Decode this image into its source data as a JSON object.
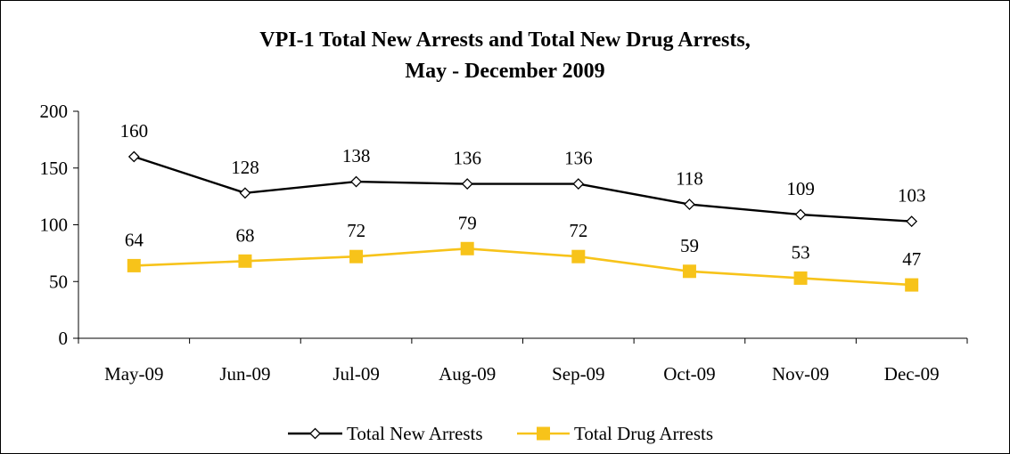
{
  "chart_data": {
    "type": "line",
    "title_line1": "VPI-1 Total New Arrests and Total New Drug Arrests,",
    "title_line2": "May - December 2009",
    "categories": [
      "May-09",
      "Jun-09",
      "Jul-09",
      "Aug-09",
      "Sep-09",
      "Oct-09",
      "Nov-09",
      "Dec-09"
    ],
    "ylim": [
      0,
      200
    ],
    "yticks": [
      0,
      50,
      100,
      150,
      200
    ],
    "grid": false,
    "legend_position": "bottom",
    "series": [
      {
        "name": "Total New Arrests",
        "values": [
          160,
          128,
          138,
          136,
          136,
          118,
          109,
          103
        ],
        "color": "#000000",
        "marker": "diamond-open"
      },
      {
        "name": "Total Drug Arrests",
        "values": [
          64,
          68,
          72,
          79,
          72,
          59,
          53,
          47
        ],
        "color": "#F7C31A",
        "marker": "square"
      }
    ]
  }
}
